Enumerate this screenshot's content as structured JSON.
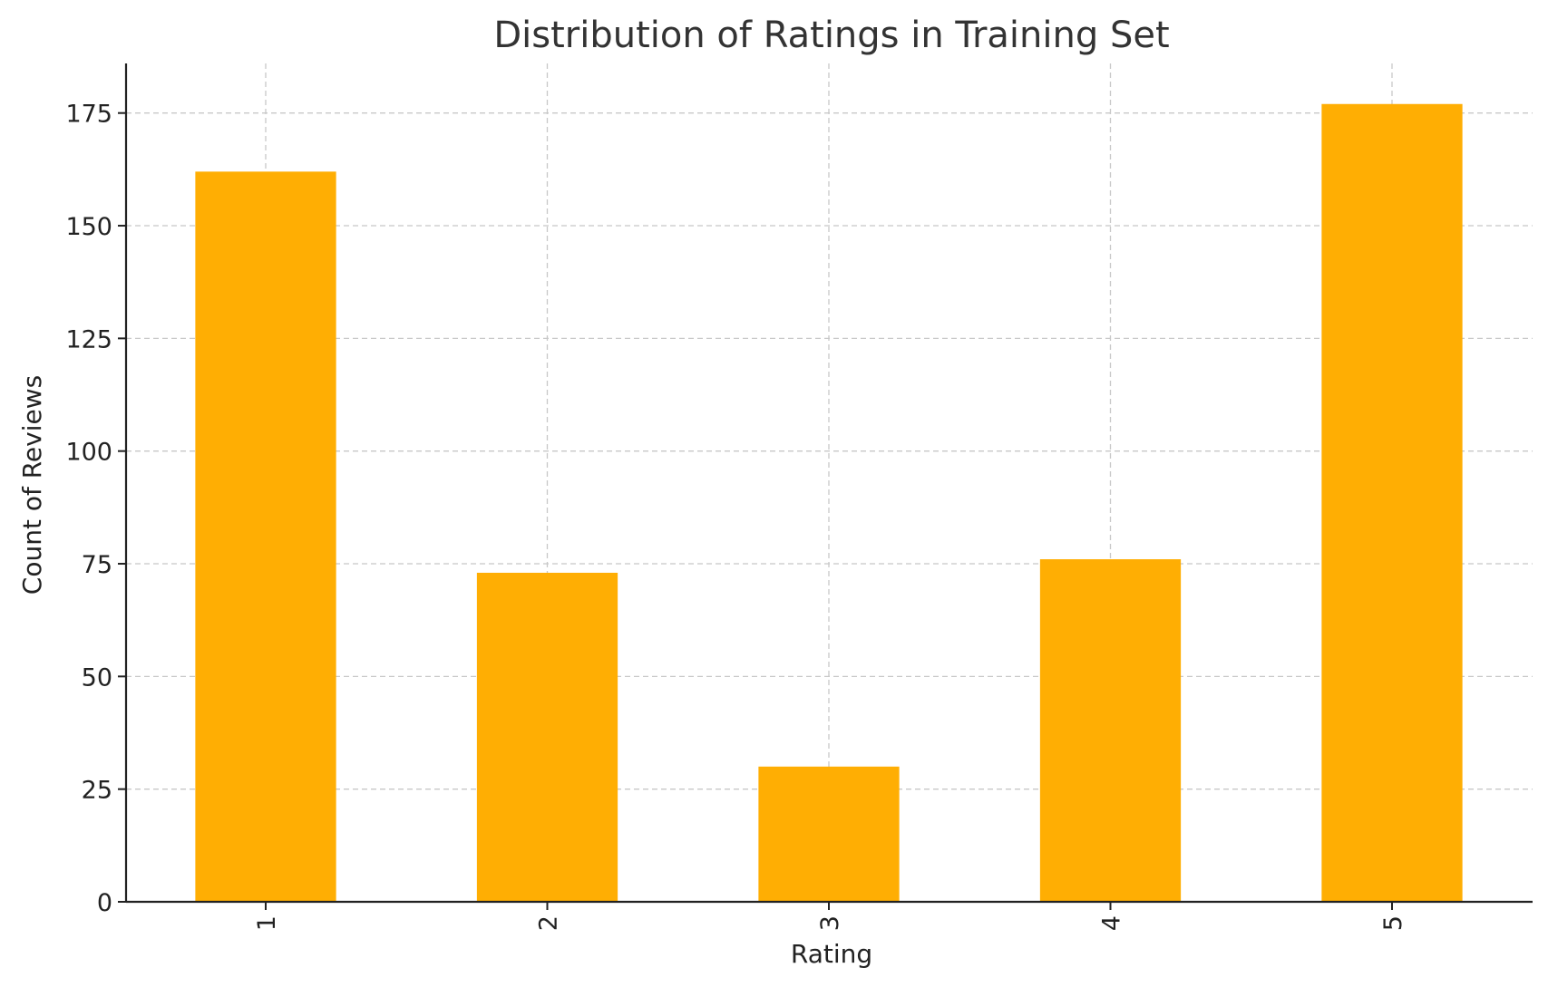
{
  "chart_data": {
    "type": "bar",
    "title": "Distribution of Ratings in Training Set",
    "xlabel": "Rating",
    "ylabel": "Count of Reviews",
    "categories": [
      "1",
      "2",
      "3",
      "4",
      "5"
    ],
    "values": [
      162,
      73,
      30,
      76,
      177
    ],
    "ylim": [
      0,
      186
    ],
    "yticks": [
      0,
      25,
      50,
      75,
      100,
      125,
      150,
      175
    ],
    "grid": true,
    "legend": "none",
    "bar_color": "#FFAE03",
    "xtick_rotation": "vertical"
  }
}
